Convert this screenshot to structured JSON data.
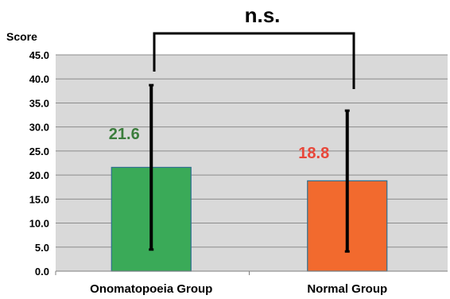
{
  "chart_data": {
    "type": "bar",
    "ylabel": "Score",
    "xlabel": "",
    "ylim": [
      0,
      45
    ],
    "yticks": [
      "0.0",
      "5.0",
      "10.0",
      "15.0",
      "20.0",
      "25.0",
      "30.0",
      "35.0",
      "40.0",
      "45.0"
    ],
    "categories": [
      "Onomatopoeia Group",
      "Normal Group"
    ],
    "values": [
      21.6,
      18.8
    ],
    "value_labels": [
      "21.6",
      "18.8"
    ],
    "error_bars": [
      {
        "low": 4.5,
        "high": 38.7
      },
      {
        "low": 4.1,
        "high": 33.4
      }
    ],
    "colors": [
      "#3aaa58",
      "#f26a2e"
    ],
    "label_colors": [
      "#3b7d3c",
      "#e8473a"
    ],
    "plot_background": "#d9d9d9",
    "grid": true,
    "legend": "none",
    "annotation": "n.s."
  }
}
